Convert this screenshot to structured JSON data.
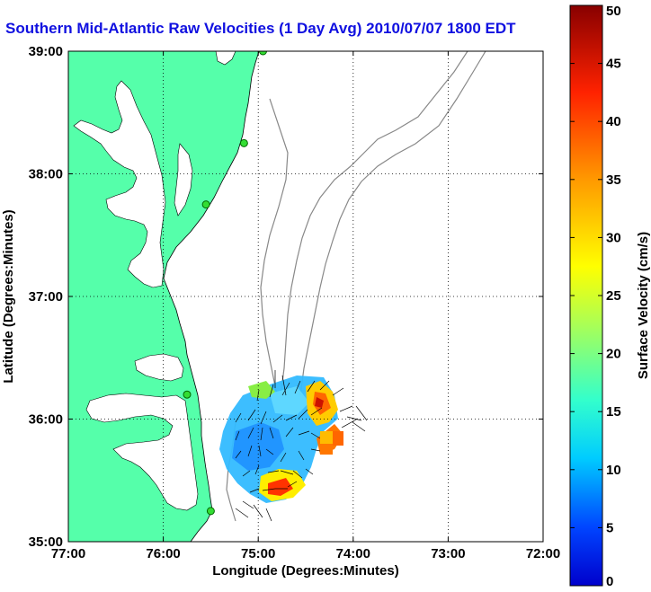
{
  "title": "Southern Mid-Atlantic Raw Velocities (1 Day Avg) 2010/07/07 1800 EDT",
  "chart_data": {
    "type": "heatmap",
    "xlabel": "Longitude (Degrees:Minutes)",
    "ylabel": "Latitude (Degrees:Minutes)",
    "x_ticks": [
      "77:00",
      "76:00",
      "75:00",
      "74:00",
      "73:00",
      "72:00"
    ],
    "y_ticks": [
      "39:00",
      "38:00",
      "37:00",
      "36:00",
      "35:00"
    ],
    "xlim": [
      -77,
      -72
    ],
    "ylim": [
      35,
      39
    ],
    "grid": true,
    "colorbar": {
      "label": "Surface Velocity (cm/s)",
      "range": [
        0,
        50
      ],
      "ticks": [
        "50",
        "45",
        "40",
        "35",
        "30",
        "25",
        "20",
        "15",
        "10",
        "5",
        "0"
      ],
      "colormap": "jet"
    },
    "radar_stations": [
      {
        "lon": -74.95,
        "lat": 39.0
      },
      {
        "lon": -75.15,
        "lat": 38.25
      },
      {
        "lon": -75.55,
        "lat": 37.75
      },
      {
        "lon": -75.75,
        "lat": 36.2
      },
      {
        "lon": -75.5,
        "lat": 35.25
      }
    ]
  },
  "colors": {
    "land": "#55ffaa",
    "title": "#1010e0",
    "bathymetry": "#888888"
  }
}
